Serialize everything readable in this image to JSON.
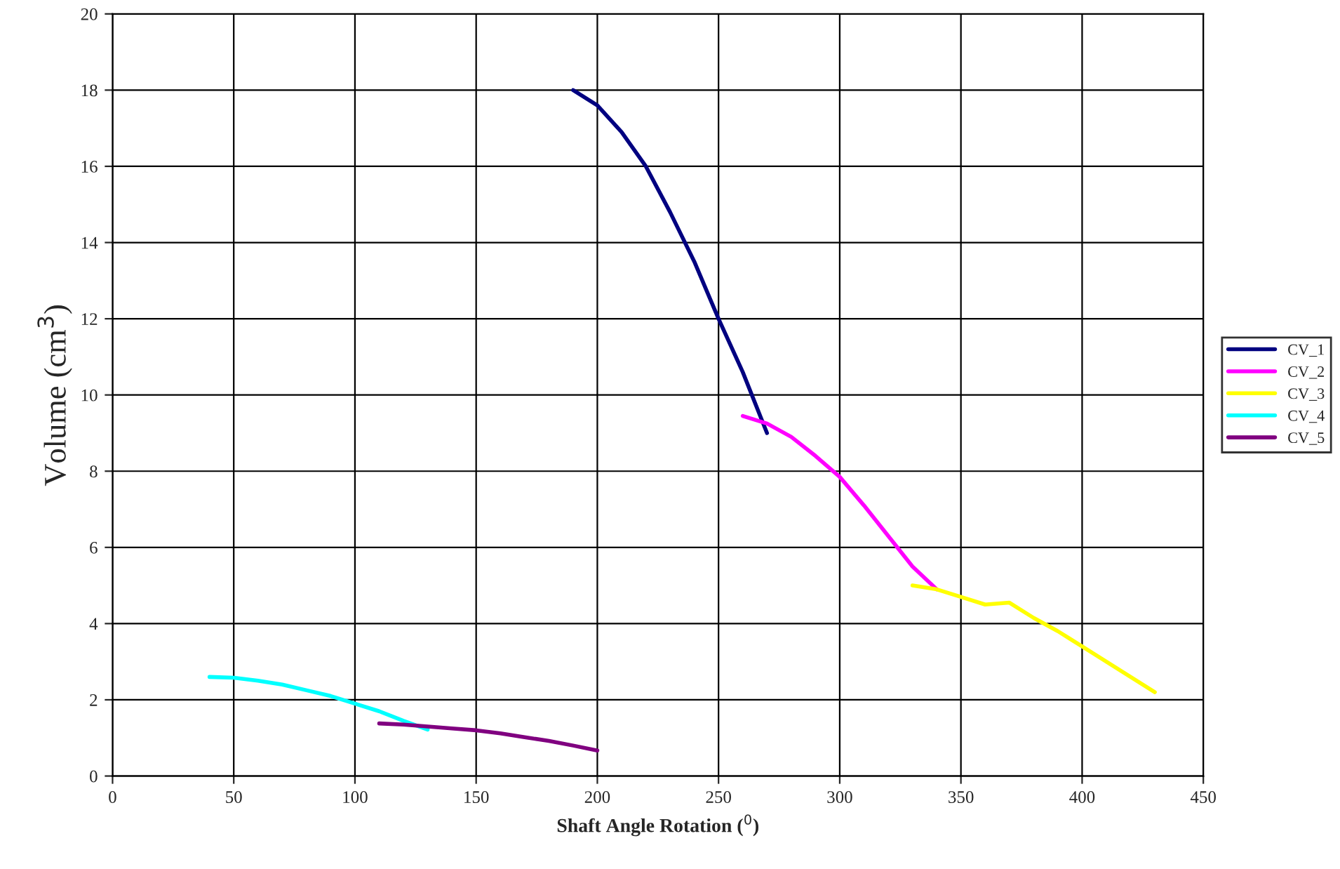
{
  "chart_data": {
    "type": "line",
    "xlabel": "Shaft Angle Rotation ($^{0}$)",
    "ylabel": "Volume (cm$^{3}$)",
    "xlim": [
      0,
      450
    ],
    "xticks": [
      0,
      50,
      100,
      150,
      200,
      250,
      300,
      350,
      400,
      450
    ],
    "ylim": [
      0,
      20
    ],
    "yticks": [
      0,
      2,
      4,
      6,
      8,
      10,
      12,
      14,
      16,
      18,
      20
    ],
    "grid": true,
    "legend": "right",
    "marker": "none",
    "line_style": "solid",
    "series": [
      {
        "name": "CV_1",
        "color": "#000080",
        "x": [
          190,
          200,
          210,
          220,
          230,
          240,
          250,
          260,
          270
        ],
        "values": [
          18.0,
          17.6,
          16.9,
          16.0,
          14.8,
          13.5,
          12.0,
          10.6,
          9.0
        ]
      },
      {
        "name": "CV_2",
        "color": "#ff00ff",
        "x": [
          260,
          270,
          280,
          290,
          300,
          310,
          320,
          330,
          340
        ],
        "values": [
          9.45,
          9.25,
          8.9,
          8.4,
          7.85,
          7.1,
          6.3,
          5.5,
          4.9
        ]
      },
      {
        "name": "CV_3",
        "color": "#ffff00",
        "x": [
          330,
          340,
          350,
          360,
          370,
          380,
          390,
          400,
          410,
          420,
          430
        ],
        "values": [
          5.0,
          4.9,
          4.7,
          4.5,
          4.55,
          4.15,
          3.8,
          3.4,
          3.0,
          2.6,
          2.2
        ]
      },
      {
        "name": "CV_4",
        "color": "#00ffff",
        "x": [
          40,
          50,
          60,
          70,
          80,
          90,
          100,
          110,
          120,
          130
        ],
        "values": [
          2.6,
          2.58,
          2.5,
          2.4,
          2.25,
          2.1,
          1.9,
          1.7,
          1.45,
          1.22
        ]
      },
      {
        "name": "CV_5",
        "color": "#800080",
        "x": [
          110,
          120,
          130,
          140,
          150,
          160,
          170,
          180,
          190,
          200
        ],
        "values": [
          1.38,
          1.35,
          1.3,
          1.25,
          1.2,
          1.12,
          1.02,
          0.92,
          0.8,
          0.67
        ]
      }
    ]
  }
}
